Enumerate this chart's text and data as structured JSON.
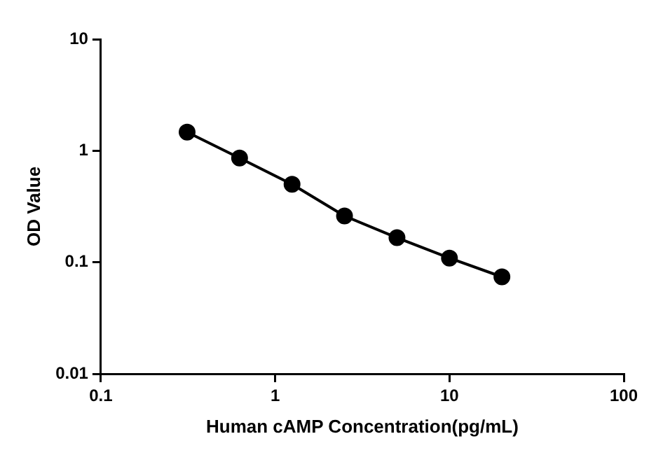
{
  "chart_data": {
    "type": "line",
    "xlabel": "Human cAMP Concentration(pg/mL)",
    "ylabel": "OD Value",
    "x": [
      0.3125,
      0.625,
      1.25,
      2.5,
      5,
      10,
      20
    ],
    "series": [
      {
        "color": "#000000",
        "values": [
          1.47,
          0.86,
          0.5,
          0.26,
          0.166,
          0.109,
          0.074
        ]
      }
    ],
    "log": "xy",
    "xlim": [
      0.1,
      100
    ],
    "ylim": [
      0.01,
      10
    ],
    "xticks": [
      0.1,
      1,
      10,
      100
    ],
    "yticks": [
      0.01,
      0.1,
      1,
      10
    ],
    "grid": false,
    "legend": false,
    "marker": "circle",
    "line_style": "solid"
  }
}
